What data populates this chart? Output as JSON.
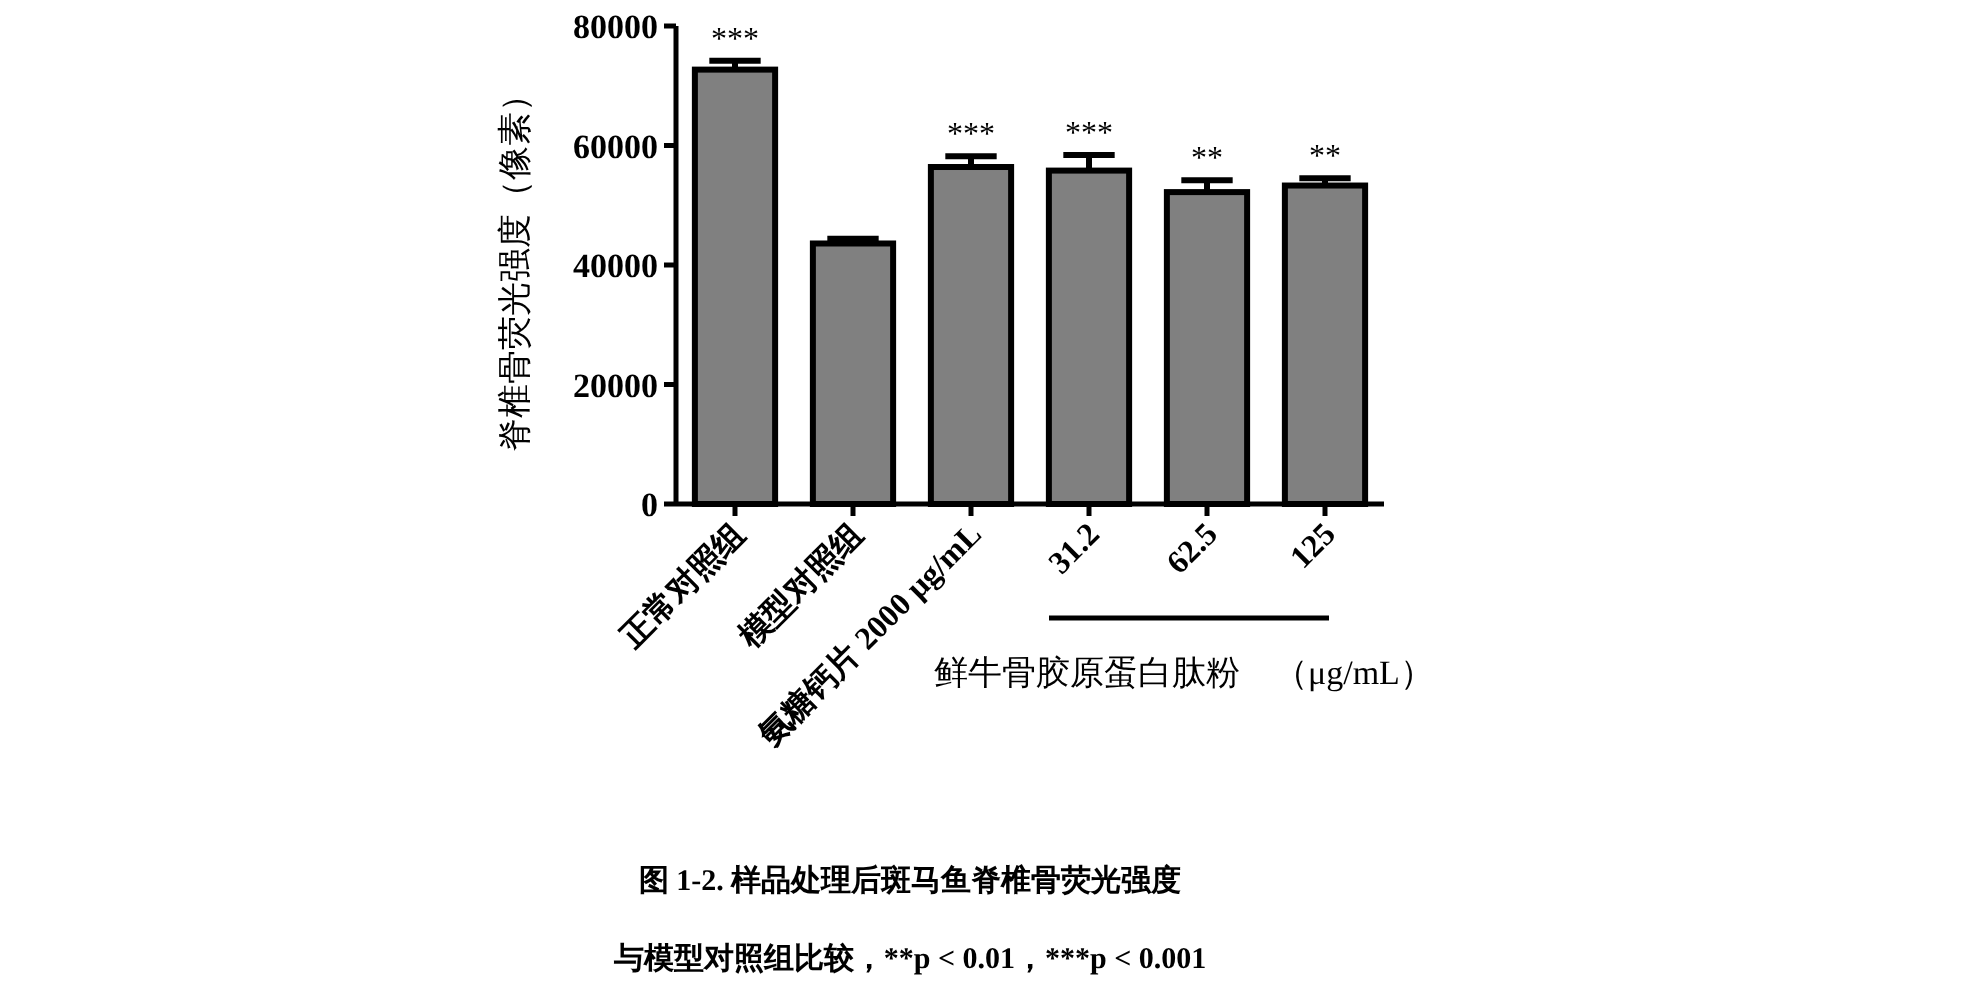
{
  "chart_data": {
    "type": "bar",
    "categories": [
      "正常对照组",
      "模型对照组",
      "氨糖钙片 2000 μg/mL",
      "31.2",
      "62.5",
      "125"
    ],
    "values": [
      72700,
      43600,
      56400,
      55800,
      52200,
      53300
    ],
    "errors": [
      1500,
      800,
      1800,
      2600,
      2000,
      1200
    ],
    "color": "#808080",
    "ylabel": "脊椎骨荧光强度（像素）",
    "ylim": [
      0,
      80000
    ],
    "yticks": [
      0,
      20000,
      40000,
      60000,
      80000
    ],
    "annotations": [
      {
        "text": "***",
        "x": "正常对照组",
        "y": 74200
      },
      {
        "text": "***",
        "x": "氨糖钙片 2000 μg/mL",
        "y": 58200
      },
      {
        "text": "***",
        "x": "31.2",
        "y": 58400
      },
      {
        "text": "**",
        "x": "62.5",
        "y": 54200
      },
      {
        "text": "**",
        "x": "125",
        "y": 54500
      },
      "鲜牛骨胶原蛋白肽粉　（μg/mL）",
      "图 1-2. 样品处理后斑马鱼脊椎骨荧光强度",
      "与模型对照组比较，**p < 0.01，***p < 0.001"
    ]
  }
}
